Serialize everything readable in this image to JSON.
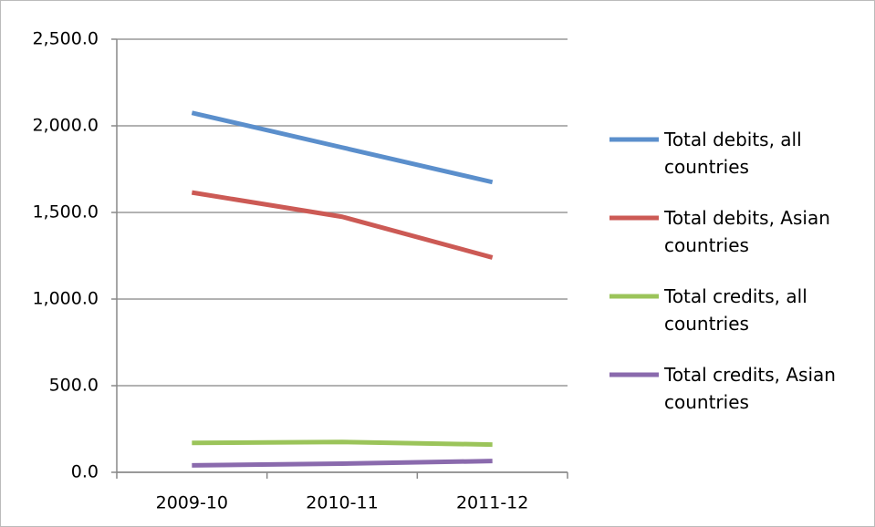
{
  "chart_data": {
    "type": "line",
    "categories": [
      "2009-10",
      "2010-11",
      "2011-12"
    ],
    "series": [
      {
        "name": "Total debits, all countries",
        "color": "#5b8fcc",
        "values": [
          2075,
          1875,
          1675
        ]
      },
      {
        "name": "Total debits, Asian countries",
        "color": "#cc5a55",
        "values": [
          1615,
          1475,
          1240
        ]
      },
      {
        "name": "Total credits, all countries",
        "color": "#9bc45a",
        "values": [
          170,
          175,
          160
        ]
      },
      {
        "name": "Total credits, Asian countries",
        "color": "#8a6aad",
        "values": [
          40,
          50,
          65
        ]
      }
    ],
    "ylim": [
      0,
      2500
    ],
    "yticks": [
      {
        "value": 0,
        "label": "0.0"
      },
      {
        "value": 500,
        "label": "500.0"
      },
      {
        "value": 1000,
        "label": "1,000.0"
      },
      {
        "value": 1500,
        "label": "1,500.0"
      },
      {
        "value": 2000,
        "label": "2,000.0"
      },
      {
        "value": 2500,
        "label": "2,500.0"
      }
    ],
    "grid": true,
    "legend": "right"
  }
}
